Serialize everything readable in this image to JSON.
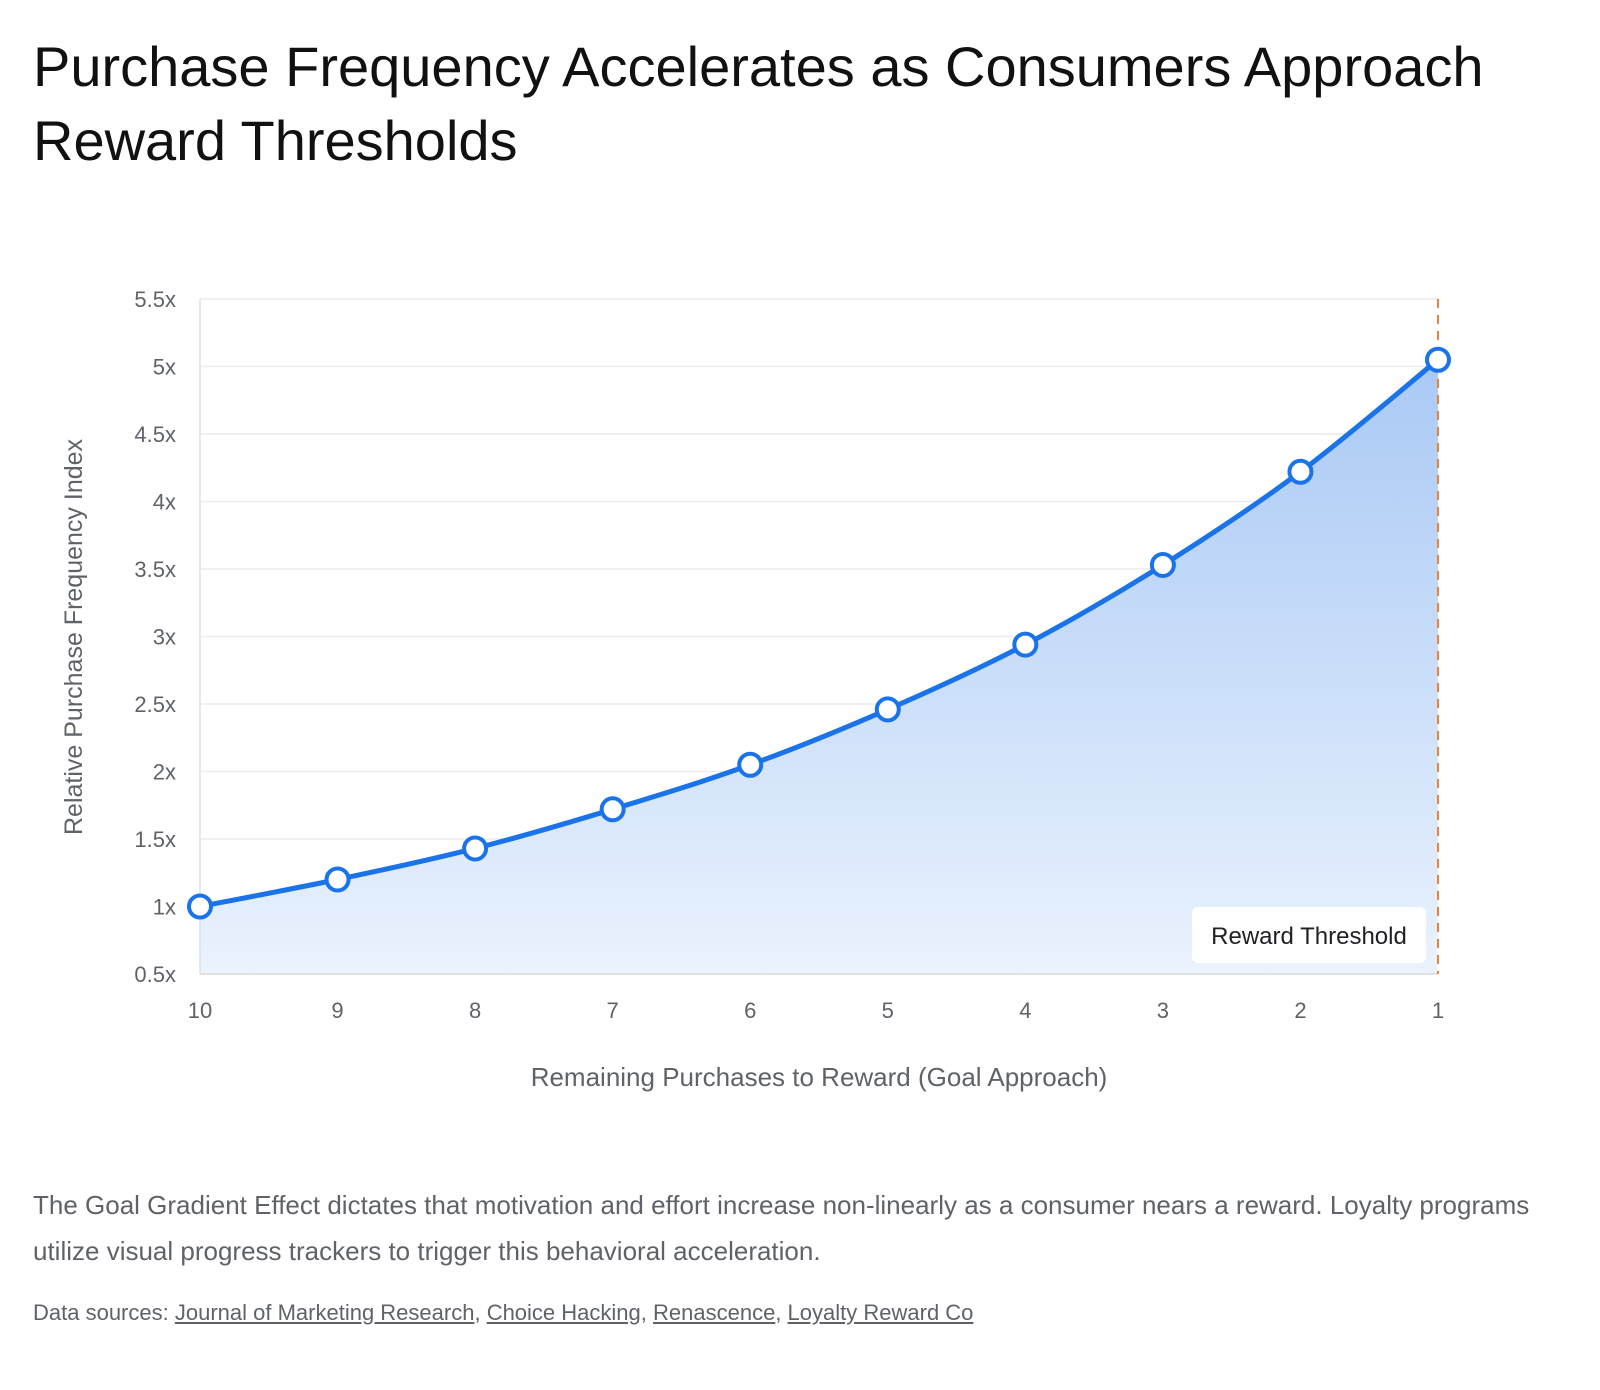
{
  "title": "Purchase Frequency Accelerates as Consumers Approach Reward Thresholds",
  "description": "The Goal Gradient Effect dictates that motivation and effort increase non-linearly as a consumer nears a reward. Loyalty programs utilize visual progress trackers to trigger this behavioral acceleration.",
  "sources": {
    "prefix": "Data sources:",
    "links": [
      "Journal of Marketing Research",
      "Choice Hacking",
      "Renascence",
      "Loyalty Reward Co"
    ]
  },
  "colors": {
    "line": "#1a73e8",
    "area_top": "#a9c9f5",
    "area_bottom": "#eaf2fd",
    "threshold": "#e8833a",
    "grid": "#ececec",
    "axis_text": "#5f6368"
  },
  "chart_data": {
    "type": "area",
    "x": [
      "10",
      "9",
      "8",
      "7",
      "6",
      "5",
      "4",
      "3",
      "2",
      "1"
    ],
    "series": [
      {
        "values": [
          1.0,
          1.2,
          1.43,
          1.72,
          2.05,
          2.46,
          2.94,
          3.53,
          4.22,
          5.05
        ]
      }
    ],
    "xlabel": "Remaining Purchases to Reward (Goal Approach)",
    "ylabel": "Relative Purchase Frequency Index",
    "ylim": [
      0.5,
      5.5
    ],
    "yticks": [
      0.5,
      1,
      1.5,
      2,
      2.5,
      3,
      3.5,
      4,
      4.5,
      5,
      5.5
    ],
    "ytick_labels": [
      "0.5x",
      "1x",
      "1.5x",
      "2x",
      "2.5x",
      "3x",
      "3.5x",
      "4x",
      "4.5x",
      "5x",
      "5.5x"
    ],
    "grid": true,
    "annotations": [
      {
        "x": "1",
        "text": "Reward Threshold",
        "style": "dashed vertical line"
      }
    ]
  }
}
